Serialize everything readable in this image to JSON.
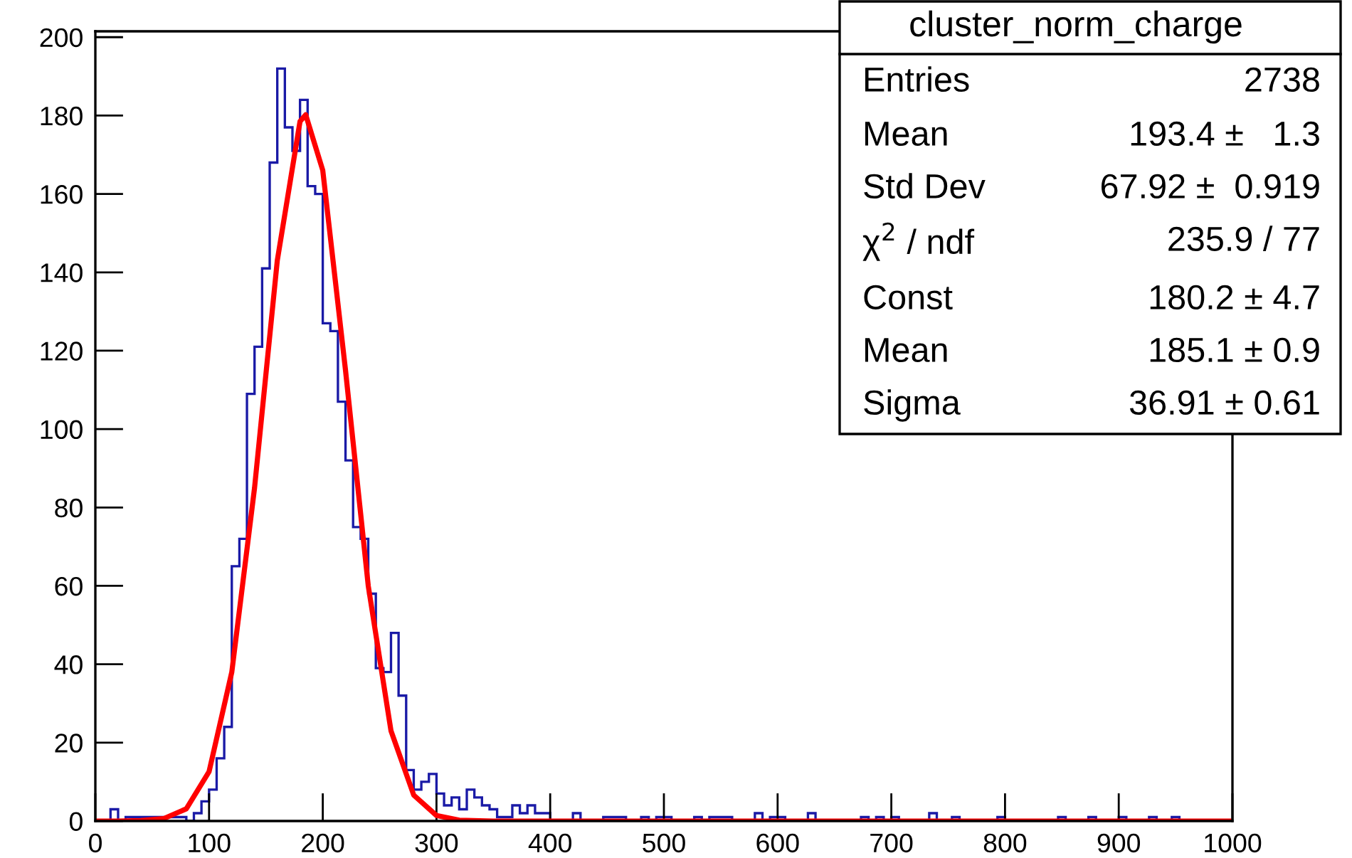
{
  "chart_data": {
    "type": "histogram",
    "title": "cluster_norm_charge",
    "bins": [
      0,
      6.67,
      13.33,
      20,
      26.67,
      33.33,
      40,
      46.67,
      53.33,
      60,
      66.67,
      73.33,
      80,
      86.67,
      93.33,
      100,
      106.67,
      113.33,
      120,
      126.67,
      133.33,
      140,
      146.67,
      153.33,
      160,
      166.67,
      173.33,
      180,
      186.67,
      193.33,
      200,
      206.67,
      213.33,
      220,
      226.67,
      233.33,
      240,
      246.67,
      253.33,
      260,
      266.67,
      273.33,
      280,
      286.67,
      293.33,
      300,
      306.67,
      313.33,
      320,
      326.67,
      333.33,
      340,
      346.67,
      353.33,
      360,
      366.67,
      373.33,
      380,
      386.67,
      393.33,
      400,
      406.67,
      413.33,
      420,
      426.67,
      433.33,
      440,
      446.67,
      453.33,
      460,
      466.67,
      473.33,
      480,
      486.67,
      493.33,
      500,
      506.67,
      513.33,
      520,
      526.67,
      533.33,
      540,
      546.67,
      553.33,
      560,
      566.67,
      573.33,
      580,
      586.67,
      593.33,
      600,
      606.67,
      613.33,
      620,
      626.67,
      633.33,
      640,
      646.67,
      653.33,
      660,
      666.67,
      673.33,
      680,
      686.67,
      693.33,
      700,
      706.67,
      713.33,
      720,
      726.67,
      733.33,
      740,
      746.67,
      753.33,
      760,
      766.67,
      773.33,
      780,
      786.67,
      793.33,
      800,
      806.67,
      813.33,
      820,
      826.67,
      833.33,
      840,
      846.67,
      853.33,
      860,
      866.67,
      873.33,
      880,
      886.67,
      893.33,
      900,
      906.67,
      913.33,
      920,
      926.67,
      933.33,
      940,
      946.67,
      953.33,
      960,
      966.67,
      973.33,
      980,
      986.67,
      993.33,
      1000
    ],
    "values": [
      0,
      0,
      3,
      0,
      1,
      1,
      1,
      1,
      1,
      1,
      1,
      1,
      0,
      2,
      5,
      8,
      16,
      24,
      65,
      72,
      109,
      121,
      141,
      168,
      192,
      177,
      171,
      184,
      162,
      160,
      127,
      125,
      107,
      92,
      75,
      72,
      58,
      39,
      38,
      48,
      32,
      13,
      8,
      10,
      12,
      7,
      4,
      6,
      3,
      8,
      6,
      4,
      3,
      1,
      1,
      4,
      2,
      4,
      2,
      2,
      0,
      0,
      0,
      2,
      0,
      0,
      0,
      1,
      1,
      1,
      0,
      0,
      1,
      0,
      1,
      1,
      0,
      0,
      0,
      1,
      0,
      1,
      1,
      1,
      0,
      0,
      0,
      2,
      0,
      1,
      1,
      0,
      0,
      0,
      2,
      0,
      0,
      0,
      0,
      0,
      0,
      1,
      0,
      1,
      0,
      1,
      0,
      0,
      0,
      0,
      2,
      0,
      0,
      1,
      0,
      0,
      0,
      0,
      0,
      1,
      0,
      0,
      0,
      0,
      0,
      0,
      0,
      1,
      0,
      0,
      0,
      1,
      0,
      0,
      0,
      1,
      0,
      0,
      0,
      1,
      0,
      0,
      1,
      0,
      0,
      0,
      0,
      0,
      0,
      0
    ],
    "color": "#1a1aa6",
    "series": [
      {
        "type": "line",
        "color": "#ff0000",
        "x": [
          0,
          20,
          40,
          60,
          80,
          100,
          120,
          140,
          160,
          180,
          185,
          200,
          220,
          240,
          260,
          280,
          300,
          320,
          350,
          400,
          1000
        ],
        "values": [
          0,
          0,
          0.1,
          0.6,
          3.1,
          12.6,
          38,
          85,
          143,
          178.5,
          180.2,
          166,
          115,
          60,
          23,
          6.6,
          1.4,
          0.2,
          0,
          0,
          0
        ]
      }
    ],
    "xlim": [
      0,
      1000
    ],
    "ylim": [
      0,
      201.5
    ],
    "xticks": [
      0,
      100,
      200,
      300,
      400,
      500,
      600,
      700,
      800,
      900,
      1000
    ],
    "yticks": [
      0,
      20,
      40,
      60,
      80,
      100,
      120,
      140,
      160,
      180,
      200
    ],
    "grid": false,
    "legend": false,
    "annotations": [
      "Entries",
      "2738",
      "Mean",
      "193.4 ±   1.3",
      "Std Dev",
      "67.92 ±  0.919",
      "χ$^{2}$ / ndf",
      "235.9 / 77",
      "Const",
      "180.2 ± 4.7",
      "Mean",
      "185.1 ± 0.9",
      "Sigma",
      "36.91 ± 0.61"
    ]
  }
}
